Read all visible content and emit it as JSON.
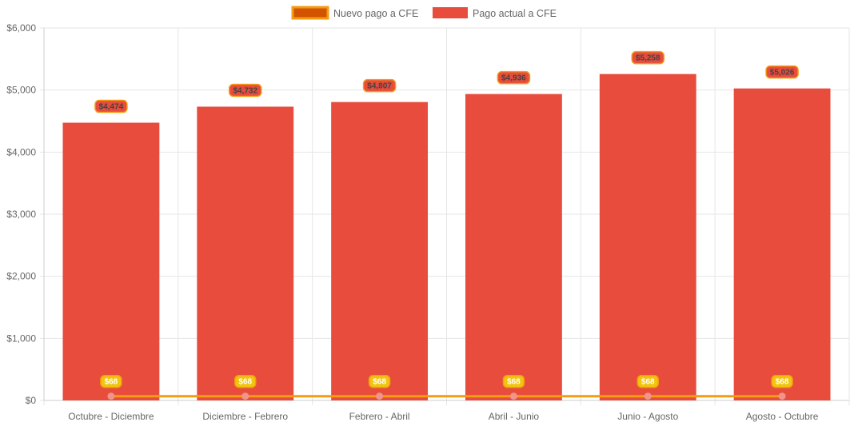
{
  "chart_data": {
    "type": "bar",
    "title": "",
    "xlabel": "",
    "ylabel": "",
    "ylim": [
      0,
      6000
    ],
    "grid": true,
    "legend_position": "top",
    "categories": [
      "Octubre - Diciembre",
      "Diciembre - Febrero",
      "Febrero - Abril",
      "Abril - Junio",
      "Junio - Agosto",
      "Agosto - Octubre"
    ],
    "y_ticks": [
      "$0",
      "$1,000",
      "$2,000",
      "$3,000",
      "$4,000",
      "$5,000",
      "$6,000"
    ],
    "y_tick_values": [
      0,
      1000,
      2000,
      3000,
      4000,
      5000,
      6000
    ],
    "series": [
      {
        "name": "Nuevo pago a CFE",
        "type": "line",
        "values": [
          68,
          68,
          68,
          68,
          68,
          68
        ],
        "labels": [
          "$68",
          "$68",
          "$68",
          "$68",
          "$68",
          "$68"
        ],
        "color": "#f39c12",
        "legend_fill": "#d35400",
        "point_color": "#f1948a",
        "label_bg": "#f1c40f"
      },
      {
        "name": "Pago actual a CFE",
        "type": "bar",
        "values": [
          4474,
          4732,
          4807,
          4936,
          5258,
          5026
        ],
        "labels": [
          "$4,474",
          "$4,732",
          "$4,807",
          "$4,936",
          "$5,258",
          "$5,026"
        ],
        "color": "#e74c3c",
        "label_bg": "#e74c3c",
        "label_border": "#f39c12"
      }
    ]
  }
}
